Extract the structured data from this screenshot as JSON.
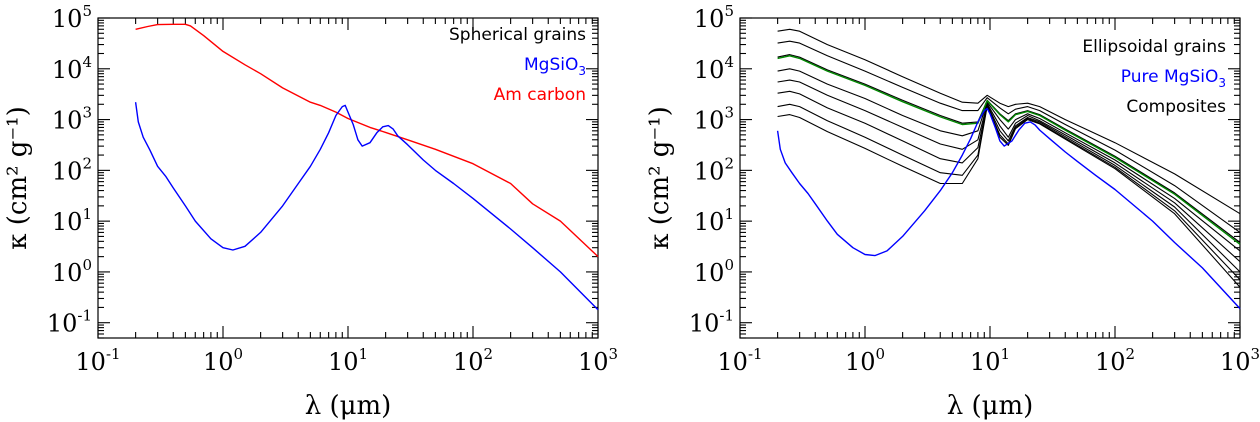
{
  "chart_data": [
    {
      "type": "line",
      "xscale": "log",
      "yscale": "log",
      "xlim": [
        0.1,
        1000
      ],
      "ylim": [
        0.05,
        100000
      ],
      "xlabel": "λ (μm)",
      "ylabel": "κ (cm² g⁻¹)",
      "xticks": [
        {
          "value": 0.1,
          "base": "10",
          "exp": "-1"
        },
        {
          "value": 1,
          "base": "10",
          "exp": "0"
        },
        {
          "value": 10,
          "base": "10",
          "exp": "1"
        },
        {
          "value": 100,
          "base": "10",
          "exp": "2"
        },
        {
          "value": 1000,
          "base": "10",
          "exp": "3"
        }
      ],
      "yticks": [
        {
          "value": 0.1,
          "base": "10",
          "exp": "-1"
        },
        {
          "value": 1,
          "base": "10",
          "exp": "0"
        },
        {
          "value": 10,
          "base": "10",
          "exp": "1"
        },
        {
          "value": 100,
          "base": "10",
          "exp": "2"
        },
        {
          "value": 1000,
          "base": "10",
          "exp": "3"
        },
        {
          "value": 10000,
          "base": "10",
          "exp": "4"
        },
        {
          "value": 100000,
          "base": "10",
          "exp": "5"
        }
      ],
      "legend": [
        {
          "text": "Spherical grains",
          "sub": "",
          "color": "#000000"
        },
        {
          "text": "MgSiO",
          "sub": "3",
          "color": "#0000ff"
        },
        {
          "text": "Am carbon",
          "sub": "",
          "color": "#ff0000"
        }
      ],
      "legend_position": "top-right",
      "series": [
        {
          "color": "#ff0000",
          "x": [
            0.2,
            0.25,
            0.3,
            0.4,
            0.5,
            0.55,
            0.7,
            1.0,
            1.5,
            2.0,
            3.0,
            5.0,
            6.0,
            8.0,
            10.0,
            15.0,
            20.0,
            30.0,
            50.0,
            100.0,
            200.0,
            300.0,
            500.0,
            1000.0
          ],
          "y": [
            60000,
            68000,
            74000,
            75000,
            75000,
            70000,
            45000,
            22000,
            12000,
            8000,
            4200,
            2200,
            1900,
            1400,
            1050,
            700,
            560,
            400,
            260,
            135,
            55,
            22,
            10,
            2
          ]
        },
        {
          "color": "#0000ff",
          "x": [
            0.2,
            0.21,
            0.23,
            0.26,
            0.3,
            0.35,
            0.4,
            0.5,
            0.6,
            0.8,
            1.0,
            1.2,
            1.5,
            2.0,
            3.0,
            4.0,
            5.0,
            6.0,
            7.0,
            8.0,
            9.0,
            9.5,
            10.0,
            11.0,
            12.0,
            13.0,
            15.0,
            17.0,
            19.0,
            21.0,
            23.0,
            25.0,
            30.0,
            40.0,
            50.0,
            70.0,
            100.0,
            200.0,
            300.0,
            500.0,
            1000.0
          ],
          "y": [
            2200,
            900,
            450,
            250,
            120,
            75,
            45,
            20,
            10,
            4.5,
            3.0,
            2.7,
            3.2,
            6.0,
            20,
            55,
            120,
            260,
            550,
            1200,
            1800,
            1900,
            1400,
            800,
            400,
            300,
            350,
            550,
            720,
            760,
            650,
            480,
            320,
            160,
            100,
            55,
            28,
            7,
            3,
            1,
            0.18
          ]
        }
      ]
    },
    {
      "type": "line",
      "xscale": "log",
      "yscale": "log",
      "xlim": [
        0.1,
        1000
      ],
      "ylim": [
        0.05,
        100000
      ],
      "xlabel": "λ (μm)",
      "ylabel": "κ (cm² g⁻¹)",
      "xticks": [
        {
          "value": 0.1,
          "base": "10",
          "exp": "-1"
        },
        {
          "value": 1,
          "base": "10",
          "exp": "0"
        },
        {
          "value": 10,
          "base": "10",
          "exp": "1"
        },
        {
          "value": 100,
          "base": "10",
          "exp": "2"
        },
        {
          "value": 1000,
          "base": "10",
          "exp": "3"
        }
      ],
      "yticks": [
        {
          "value": 0.1,
          "base": "10",
          "exp": "-1"
        },
        {
          "value": 1,
          "base": "10",
          "exp": "0"
        },
        {
          "value": 10,
          "base": "10",
          "exp": "1"
        },
        {
          "value": 100,
          "base": "10",
          "exp": "2"
        },
        {
          "value": 1000,
          "base": "10",
          "exp": "3"
        },
        {
          "value": 10000,
          "base": "10",
          "exp": "4"
        },
        {
          "value": 100000,
          "base": "10",
          "exp": "5"
        }
      ],
      "legend": [
        {
          "text": "Ellipsoidal grains",
          "sub": "",
          "color": "#000000"
        },
        {
          "text": "Pure MgSiO",
          "sub": "3",
          "color": "#0000ff"
        },
        {
          "text": "Composites",
          "sub": "",
          "color": "#000000"
        }
      ],
      "legend_position": "top-right",
      "series": [
        {
          "color": "#000000",
          "x": [
            0.2,
            0.25,
            0.3,
            0.5,
            1,
            2,
            4,
            6,
            8,
            9.5,
            12,
            14,
            16,
            20,
            25,
            40,
            100,
            300,
            1000
          ],
          "y": [
            55000,
            60000,
            55000,
            30000,
            15000,
            7000,
            3300,
            2200,
            2100,
            3000,
            2100,
            1800,
            2000,
            2100,
            1800,
            1000,
            350,
            85,
            14
          ]
        },
        {
          "color": "#000000",
          "x": [
            0.2,
            0.25,
            0.3,
            0.5,
            1,
            2,
            4,
            6,
            8,
            9.5,
            12,
            14,
            16,
            20,
            25,
            40,
            100,
            300,
            1000
          ],
          "y": [
            32000,
            35000,
            32000,
            18000,
            9000,
            4300,
            2100,
            1500,
            1500,
            2700,
            1700,
            1300,
            1600,
            1800,
            1500,
            800,
            250,
            50,
            6
          ]
        },
        {
          "color": "#000000",
          "x": [
            0.2,
            0.25,
            0.3,
            0.5,
            1,
            2,
            4,
            6,
            8,
            9.5,
            12,
            14,
            16,
            20,
            25,
            40,
            100,
            300,
            1000
          ],
          "y": [
            17000,
            19000,
            17000,
            9500,
            5000,
            2400,
            1200,
            850,
            900,
            2400,
            1300,
            950,
            1300,
            1500,
            1250,
            650,
            190,
            36,
            3.8
          ]
        },
        {
          "color": "#000000",
          "x": [
            0.2,
            0.25,
            0.3,
            0.5,
            1,
            2,
            4,
            6,
            8,
            9.5,
            12,
            14,
            16,
            20,
            25,
            40,
            100,
            300,
            1000
          ],
          "y": [
            9000,
            10000,
            9000,
            5000,
            2600,
            1200,
            600,
            480,
            600,
            2200,
            1000,
            650,
            1000,
            1300,
            1050,
            550,
            160,
            28,
            2.6
          ]
        },
        {
          "color": "#000000",
          "x": [
            0.2,
            0.25,
            0.3,
            0.5,
            1,
            2,
            4,
            6,
            8,
            9.5,
            12,
            14,
            16,
            20,
            25,
            40,
            100,
            300,
            1000
          ],
          "y": [
            5500,
            6000,
            5500,
            3000,
            1500,
            700,
            330,
            260,
            400,
            2050,
            750,
            450,
            850,
            1200,
            950,
            500,
            140,
            23,
            1.6
          ]
        },
        {
          "color": "#000000",
          "x": [
            0.2,
            0.25,
            0.3,
            0.5,
            1,
            2,
            4,
            6,
            8,
            9.5,
            12,
            14,
            16,
            20,
            25,
            40,
            100,
            300,
            1000
          ],
          "y": [
            3300,
            3600,
            3200,
            1700,
            850,
            380,
            170,
            140,
            280,
            1950,
            600,
            380,
            750,
            1100,
            900,
            460,
            125,
            19,
            1.0
          ]
        },
        {
          "color": "#000000",
          "x": [
            0.2,
            0.25,
            0.3,
            0.5,
            1,
            2,
            4,
            6,
            8,
            9.5,
            12,
            14,
            16,
            20,
            25,
            40,
            100,
            300,
            1000
          ],
          "y": [
            1800,
            2000,
            1800,
            950,
            450,
            200,
            90,
            80,
            200,
            1900,
            500,
            330,
            700,
            1050,
            850,
            430,
            115,
            16,
            0.7
          ]
        },
        {
          "color": "#000000",
          "x": [
            0.2,
            0.25,
            0.3,
            0.5,
            1,
            2,
            4,
            6,
            8,
            9.5,
            12,
            14,
            16,
            20,
            25,
            40,
            100,
            300,
            1000
          ],
          "y": [
            1150,
            1250,
            1100,
            580,
            270,
            120,
            55,
            55,
            170,
            1850,
            450,
            310,
            660,
            1000,
            820,
            410,
            108,
            14,
            0.5
          ]
        },
        {
          "color": "#008800",
          "x": [
            0.2,
            0.25,
            0.3,
            0.5,
            1,
            2,
            4,
            6,
            8,
            9.5,
            12,
            14,
            16,
            20,
            25,
            40,
            100,
            300,
            1000
          ],
          "y": [
            16000,
            18000,
            16000,
            9000,
            4700,
            2250,
            1130,
            800,
            850,
            2350,
            1250,
            900,
            1250,
            1450,
            1200,
            620,
            180,
            34,
            3.5
          ]
        },
        {
          "color": "#0000ff",
          "x": [
            0.2,
            0.21,
            0.23,
            0.26,
            0.3,
            0.35,
            0.4,
            0.5,
            0.6,
            0.8,
            1.0,
            1.2,
            1.5,
            2.0,
            3.0,
            4.0,
            5.0,
            6.0,
            7.0,
            8.0,
            9.0,
            9.5,
            10.0,
            11.0,
            12.0,
            13.0,
            15.0,
            17.0,
            19.0,
            21.0,
            23.0,
            25.0,
            30.0,
            40.0,
            50.0,
            70.0,
            100.0,
            200.0,
            300.0,
            500.0,
            1000.0
          ],
          "y": [
            600,
            260,
            140,
            90,
            55,
            35,
            22,
            10,
            5.5,
            3.0,
            2.2,
            2.1,
            2.6,
            5.0,
            16,
            40,
            90,
            200,
            420,
            900,
            1500,
            1650,
            1300,
            700,
            380,
            300,
            380,
            620,
            850,
            900,
            780,
            620,
            420,
            230,
            150,
            80,
            42,
            10,
            3.8,
            1.2,
            0.19
          ]
        }
      ]
    }
  ]
}
